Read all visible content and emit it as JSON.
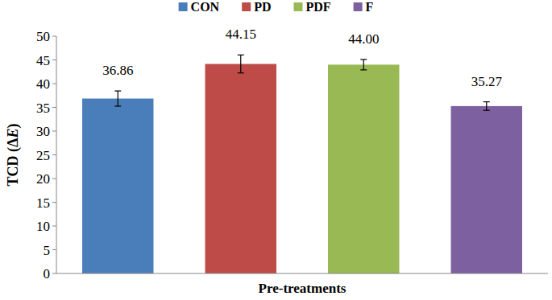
{
  "chart_data": {
    "type": "bar",
    "x_label": "Pre-treatments",
    "y_label": "TCD (ΔE)",
    "categories": [
      "CON",
      "PD",
      "PDF",
      "F"
    ],
    "values": [
      36.86,
      44.15,
      44.0,
      35.27
    ],
    "value_labels": [
      "36.86",
      "44.15",
      "44.00",
      "35.27"
    ],
    "errors": [
      1.6,
      1.9,
      1.1,
      0.9
    ],
    "colors": [
      "#4a7ebb",
      "#be4b48",
      "#98b954",
      "#7d60a0"
    ],
    "ylim": [
      0,
      50
    ],
    "yticks": [
      0,
      5,
      10,
      15,
      20,
      25,
      30,
      35,
      40,
      45,
      50
    ],
    "grid": false,
    "legend": "top",
    "data_labels": true,
    "tick_labels": "y"
  }
}
